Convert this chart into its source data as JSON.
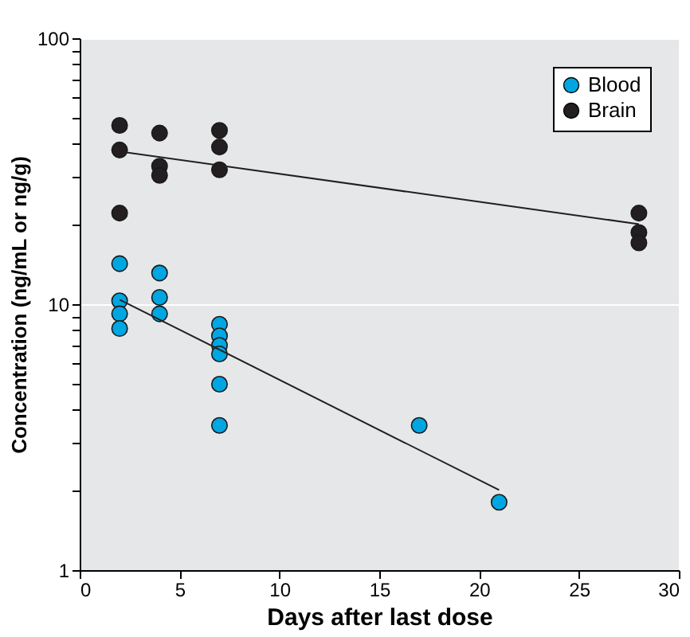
{
  "chart_data": {
    "type": "scatter",
    "xlabel": "Days after last dose",
    "ylabel": "Concentration (ng/mL or ng/g)",
    "log": true,
    "grid": "y",
    "legend": "top right",
    "marker": "circle",
    "xlim": [
      0,
      30
    ],
    "xticks": [
      0,
      5,
      10,
      15,
      20,
      25,
      30
    ],
    "ylim": [
      1,
      100
    ],
    "yticks": [
      1,
      {
        "value": 2,
        "label": null
      },
      {
        "value": 3,
        "label": null
      },
      {
        "value": 4,
        "label": null
      },
      {
        "value": 5,
        "label": null
      },
      {
        "value": 6,
        "label": null
      },
      {
        "value": 7,
        "label": null
      },
      {
        "value": 8,
        "label": null
      },
      {
        "value": 9,
        "label": null
      },
      10,
      {
        "value": 20,
        "label": null
      },
      {
        "value": 30,
        "label": null
      },
      {
        "value": 40,
        "label": null
      },
      {
        "value": 50,
        "label": null
      },
      {
        "value": 60,
        "label": null
      },
      {
        "value": 70,
        "label": null
      },
      {
        "value": 80,
        "label": null
      },
      {
        "value": 90,
        "label": null
      },
      100
    ],
    "series": [
      {
        "name": "Blood",
        "color": "#00a6e2",
        "x": [
          2,
          2,
          2,
          2,
          4,
          4,
          4,
          7,
          7,
          7,
          7,
          7,
          7,
          17,
          21
        ],
        "values": [
          14.2,
          10.3,
          9.2,
          8.1,
          13.1,
          10.6,
          9.2,
          8.4,
          7.6,
          7.0,
          6.5,
          5.0,
          3.5,
          3.5,
          1.8
        ]
      },
      {
        "name": "Brain",
        "color": "#231f20",
        "x": [
          2,
          2,
          2,
          4,
          4,
          4,
          7,
          7,
          7,
          28,
          28,
          28
        ],
        "values": [
          47,
          38,
          22,
          44,
          33,
          30.5,
          45,
          39,
          32,
          22,
          18.6,
          17
        ]
      },
      {
        "type": "line",
        "color": "#231f20",
        "marker": "none",
        "x": [
          2,
          21
        ],
        "values": [
          10.4,
          2.0
        ]
      },
      {
        "type": "line",
        "color": "#231f20",
        "marker": "none",
        "x": [
          2,
          28
        ],
        "values": [
          37.5,
          20
        ]
      }
    ]
  }
}
